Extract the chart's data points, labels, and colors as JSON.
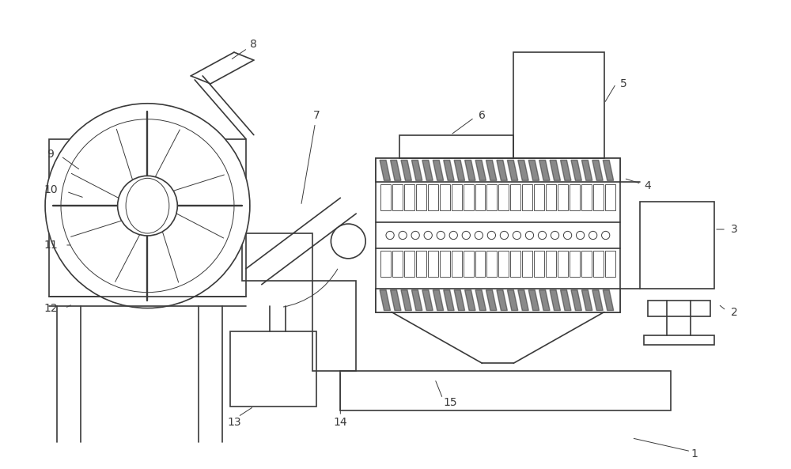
{
  "bg_color": "#ffffff",
  "line_color": "#3a3a3a",
  "line_width": 1.2,
  "thin_line": 0.7,
  "label_color": "#3a3a3a",
  "label_fontsize": 10,
  "figsize": [
    10.0,
    5.93
  ],
  "dpi": 100
}
